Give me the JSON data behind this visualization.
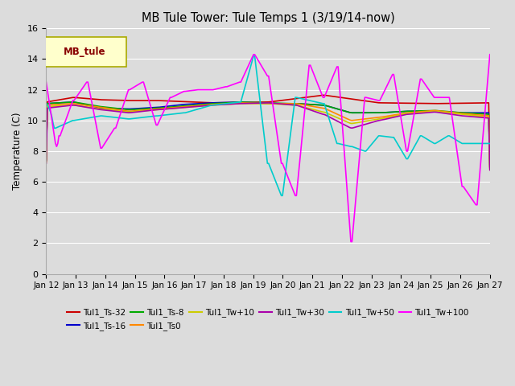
{
  "title": "MB Tule Tower: Tule Temps 1 (3/19/14-now)",
  "ylabel": "Temperature (C)",
  "xlim": [
    0,
    15
  ],
  "ylim": [
    0,
    16
  ],
  "yticks": [
    0,
    2,
    4,
    6,
    8,
    10,
    12,
    14,
    16
  ],
  "xtick_labels": [
    "Jan 12",
    "Jan 13",
    "Jan 14",
    "Jan 15",
    "Jan 16",
    "Jan 17",
    "Jan 18",
    "Jan 19",
    "Jan 20",
    "Jan 21",
    "Jan 22",
    "Jan 23",
    "Jan 24",
    "Jan 25",
    "Jan 26",
    "Jan 27"
  ],
  "bg_color": "#dcdcdc",
  "grid_color": "#ffffff",
  "legend_label": "MB_tule",
  "legend_bg": "#ffffcc",
  "legend_edge": "#aaaa00",
  "series_order": [
    "Tul1_Ts-32",
    "Tul1_Ts-16",
    "Tul1_Ts-8",
    "Tul1_Ts0",
    "Tul1_Tw+10",
    "Tul1_Tw+30",
    "Tul1_Tw+50",
    "Tul1_Tw+100"
  ],
  "series_colors": {
    "Tul1_Ts-32": "#cc0000",
    "Tul1_Ts-16": "#0000cc",
    "Tul1_Ts-8": "#00aa00",
    "Tul1_Ts0": "#ff8800",
    "Tul1_Tw+10": "#cccc00",
    "Tul1_Tw+30": "#aa00aa",
    "Tul1_Tw+50": "#00cccc",
    "Tul1_Tw+100": "#ff00ff"
  },
  "n_days": 16,
  "pts_per_day": 24
}
